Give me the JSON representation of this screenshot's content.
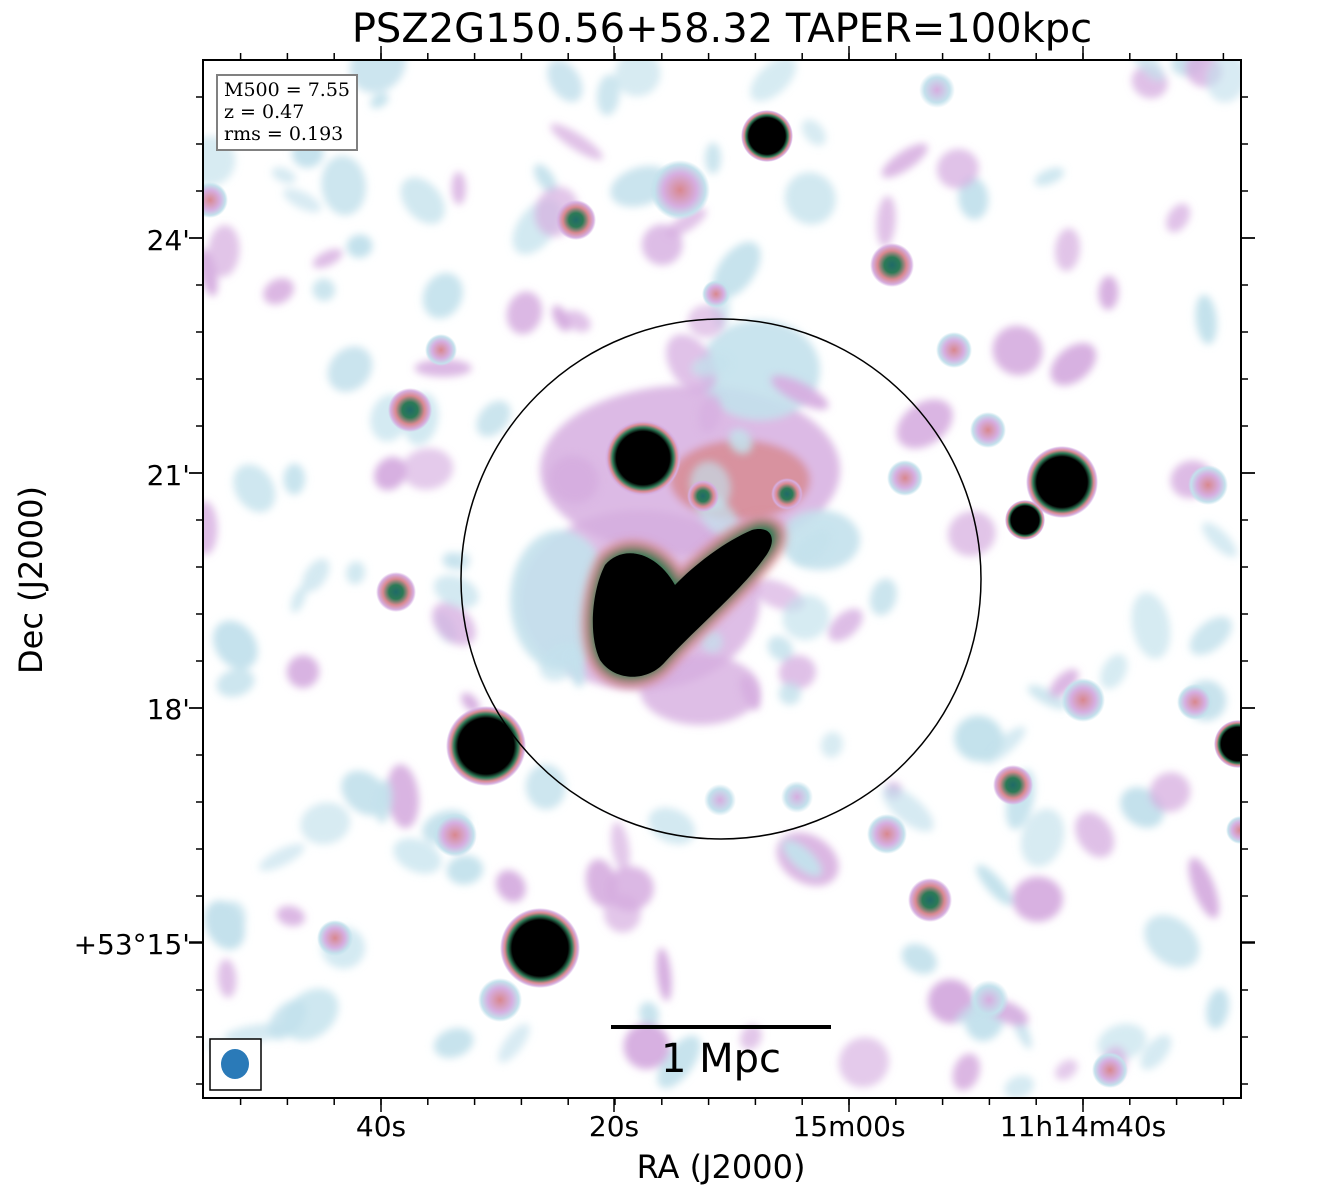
{
  "chart_data": {
    "type": "heatmap",
    "title": "PSZ2G150.56+58.32 TAPER=100kpc",
    "xlabel": "RA (J2000)",
    "ylabel": "Dec (J2000)",
    "x_ticks": [
      "40s",
      "20s",
      "15m00s",
      "11h14m40s"
    ],
    "y_ticks": [
      "24'",
      "21'",
      "18'",
      "+53°15'"
    ],
    "annotations": {
      "m500": "M500 = 7.55",
      "z": "z = 0.47",
      "rms": "rms = 0.193"
    },
    "scalebar_label": "1 Mpc",
    "colormap": "cubehelix-like (white → light blue → pink → green → black)",
    "colors": {
      "faint": "#c3e1ec",
      "low": "#d6aee0",
      "mid": "#d8888f",
      "high": "#2c7a56",
      "peak": "#000000",
      "beam": "#2a7ab8",
      "circle": "#000000"
    }
  }
}
